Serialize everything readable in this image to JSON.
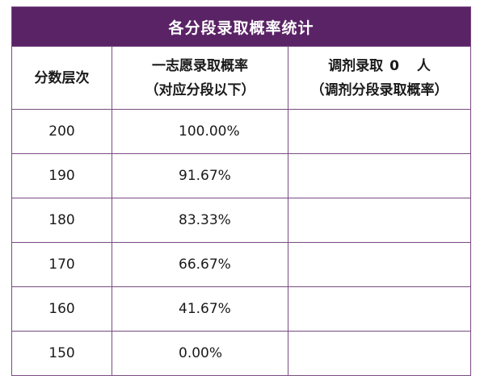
{
  "table": {
    "title": "各分段录取概率统计",
    "headers": {
      "score": "分数层次",
      "rate_line1": "一志愿录取概率",
      "rate_line2": "（对应分段以下）",
      "adjust_prefix": "调剂录取",
      "adjust_count": "0",
      "adjust_suffix": "人",
      "adjust_line2": "（调剂分段录取概率）"
    },
    "rows": [
      {
        "score": "200",
        "rate": "100.00%",
        "adjust": ""
      },
      {
        "score": "190",
        "rate": "91.67%",
        "adjust": ""
      },
      {
        "score": "180",
        "rate": "83.33%",
        "adjust": ""
      },
      {
        "score": "170",
        "rate": "66.67%",
        "adjust": ""
      },
      {
        "score": "160",
        "rate": "41.67%",
        "adjust": ""
      },
      {
        "score": "150",
        "rate": "0.00%",
        "adjust": ""
      }
    ]
  },
  "colors": {
    "title_background": "#5a2366",
    "title_text": "#ffffff",
    "border": "#7a4a82"
  }
}
